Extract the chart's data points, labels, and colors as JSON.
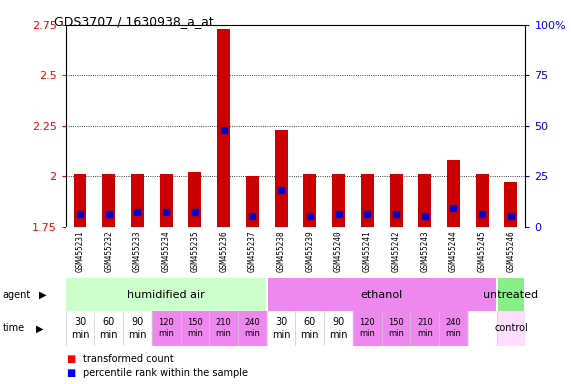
{
  "title": "GDS3707 / 1630938_a_at",
  "samples": [
    "GSM455231",
    "GSM455232",
    "GSM455233",
    "GSM455234",
    "GSM455235",
    "GSM455236",
    "GSM455237",
    "GSM455238",
    "GSM455239",
    "GSM455240",
    "GSM455241",
    "GSM455242",
    "GSM455243",
    "GSM455244",
    "GSM455245",
    "GSM455246"
  ],
  "red_values": [
    2.01,
    2.01,
    2.01,
    2.01,
    2.02,
    2.73,
    2.0,
    2.23,
    2.01,
    2.01,
    2.01,
    2.01,
    2.01,
    2.08,
    2.01,
    1.97
  ],
  "blue_values_pct": [
    6,
    6,
    7,
    7,
    7,
    48,
    5,
    18,
    5,
    6,
    6,
    6,
    5,
    9,
    6,
    5
  ],
  "ylim_left": [
    1.75,
    2.75
  ],
  "ylim_right": [
    0,
    100
  ],
  "yticks_left": [
    1.75,
    2.0,
    2.25,
    2.5,
    2.75
  ],
  "yticks_right": [
    0,
    25,
    50,
    75,
    100
  ],
  "ytick_labels_left": [
    "1.75",
    "2",
    "2.25",
    "2.5",
    "2.75"
  ],
  "ytick_labels_right": [
    "0",
    "25",
    "50",
    "75",
    "100%"
  ],
  "bar_bottom": 1.75,
  "agent_groups": [
    {
      "label": "humidified air",
      "start": 0,
      "end": 7,
      "color": "#ccffcc"
    },
    {
      "label": "ethanol",
      "start": 7,
      "end": 15,
      "color": "#ee88ee"
    },
    {
      "label": "untreated",
      "start": 15,
      "end": 16,
      "color": "#88ee88"
    }
  ],
  "time_labels": [
    "30\nmin",
    "60\nmin",
    "90\nmin",
    "120\nmin",
    "150\nmin",
    "210\nmin",
    "240\nmin",
    "30\nmin",
    "60\nmin",
    "90\nmin",
    "120\nmin",
    "150\nmin",
    "210\nmin",
    "240\nmin",
    "",
    "control"
  ],
  "time_colors": [
    "#ffffff",
    "#ffffff",
    "#ffffff",
    "#ee88ee",
    "#ee88ee",
    "#ee88ee",
    "#ee88ee",
    "#ffffff",
    "#ffffff",
    "#ffffff",
    "#ee88ee",
    "#ee88ee",
    "#ee88ee",
    "#ee88ee",
    "#ffffff",
    "#ffddff"
  ],
  "time_font_sizes": [
    7,
    7,
    7,
    6,
    6,
    6,
    6,
    7,
    7,
    7,
    6,
    6,
    6,
    6,
    7,
    7
  ],
  "legend_red": "transformed count",
  "legend_blue": "percentile rank within the sample",
  "bar_color": "#cc0000",
  "blue_color": "#0000cc",
  "grid_color": "#000000",
  "bg_sample": "#cccccc",
  "bar_width": 0.45
}
